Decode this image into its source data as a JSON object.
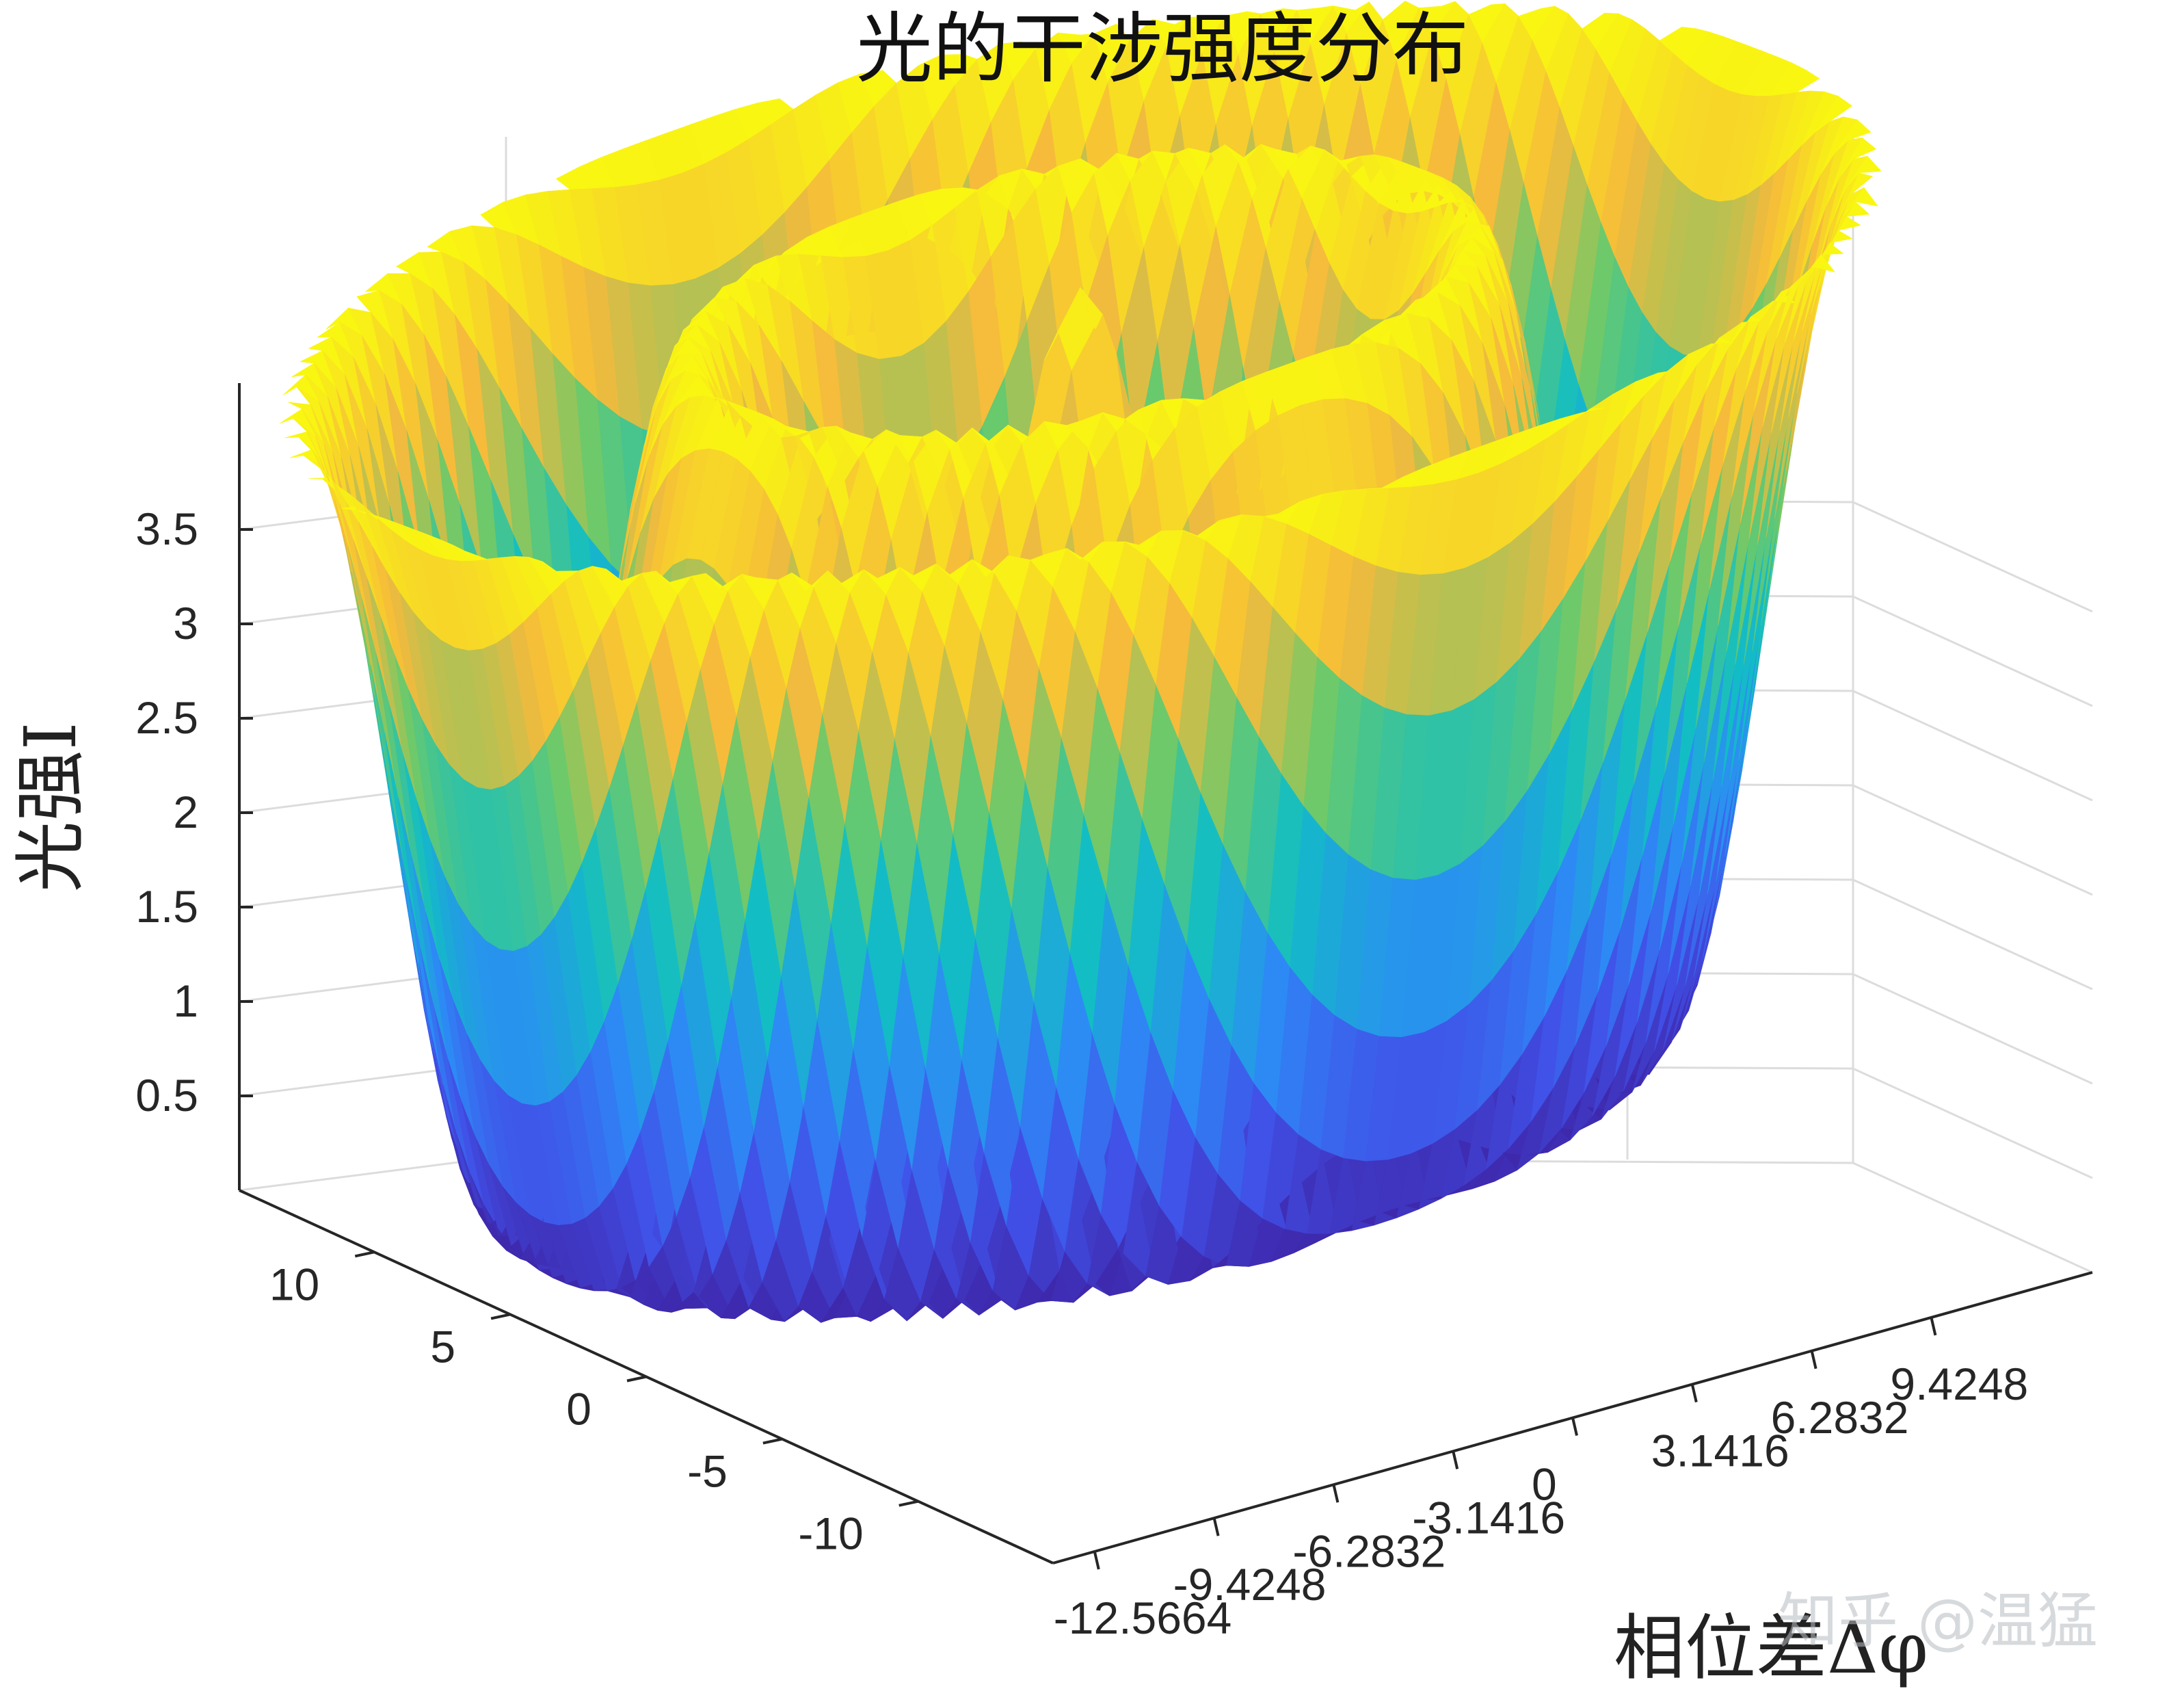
{
  "chart_data": {
    "type": "surface3d",
    "title": "光的干涉强度分布",
    "zlabel": "光强I",
    "xlabel": "相位差Δφ",
    "function": "I = 2 + 2·cos(r), r = sqrt(x² + y²)",
    "x_ticks": [
      "-12.5664",
      "-9.4248",
      "-6.2832",
      "-3.1416",
      "0",
      "3.1416",
      "6.2832",
      "9.4248"
    ],
    "y_ticks": [
      "10",
      "5",
      "0",
      "-5",
      "-10"
    ],
    "z_ticks": [
      "3.5",
      "3",
      "2.5",
      "2",
      "1.5",
      "1",
      "0.5"
    ],
    "xlim": [
      -12.5664,
      12.5664
    ],
    "ylim": [
      -12.5664,
      12.5664
    ],
    "zlim": [
      0,
      4
    ],
    "colormap": "parula",
    "colors": {
      "low": "#3e26a8",
      "mid": "#12bec4",
      "high": "#f9fb0e"
    },
    "grid": true
  },
  "watermark": "知乎 @温猛"
}
